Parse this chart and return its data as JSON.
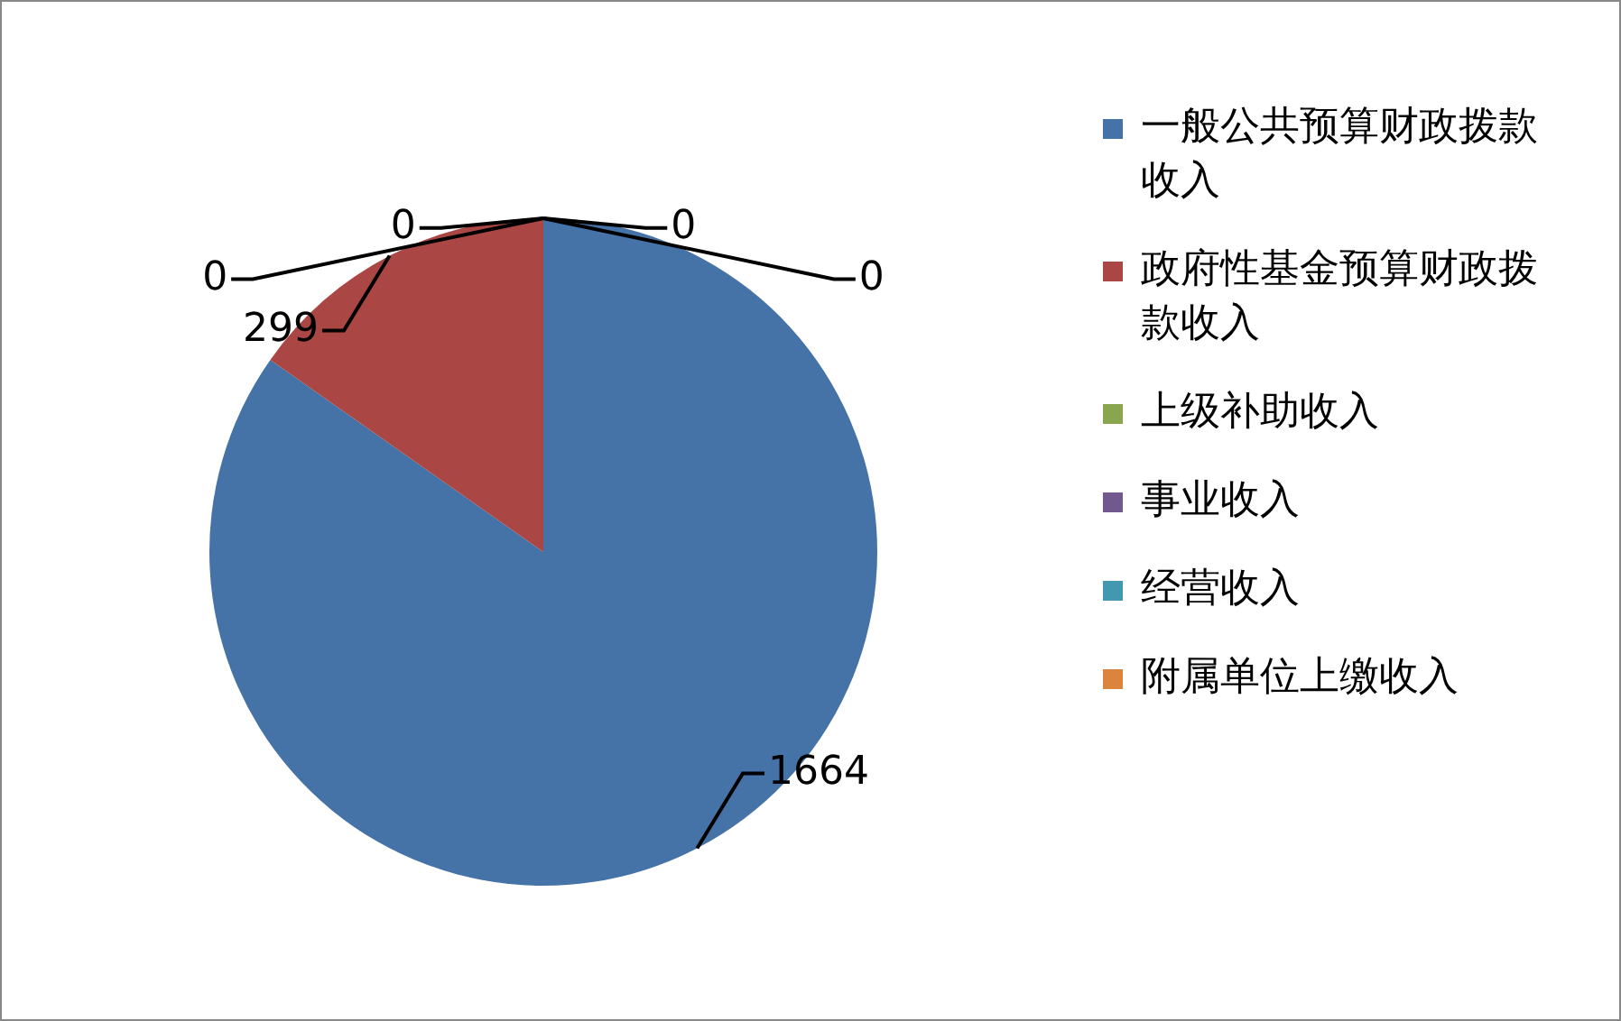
{
  "chart_data": {
    "type": "pie",
    "categories": [
      "一般公共预算财政拨款收入",
      "政府性基金预算财政拨款收入",
      "上级补助收入",
      "事业收入",
      "经营收入",
      "附属单位上缴收入"
    ],
    "values": [
      1664,
      299,
      0,
      0,
      0,
      0
    ],
    "colors": [
      "#4572a7",
      "#aa4643",
      "#89a54e",
      "#71588f",
      "#4198af",
      "#db843d"
    ],
    "value_labels": [
      "1664",
      "299",
      "0",
      "0",
      "0",
      "0"
    ],
    "legend": "right"
  }
}
